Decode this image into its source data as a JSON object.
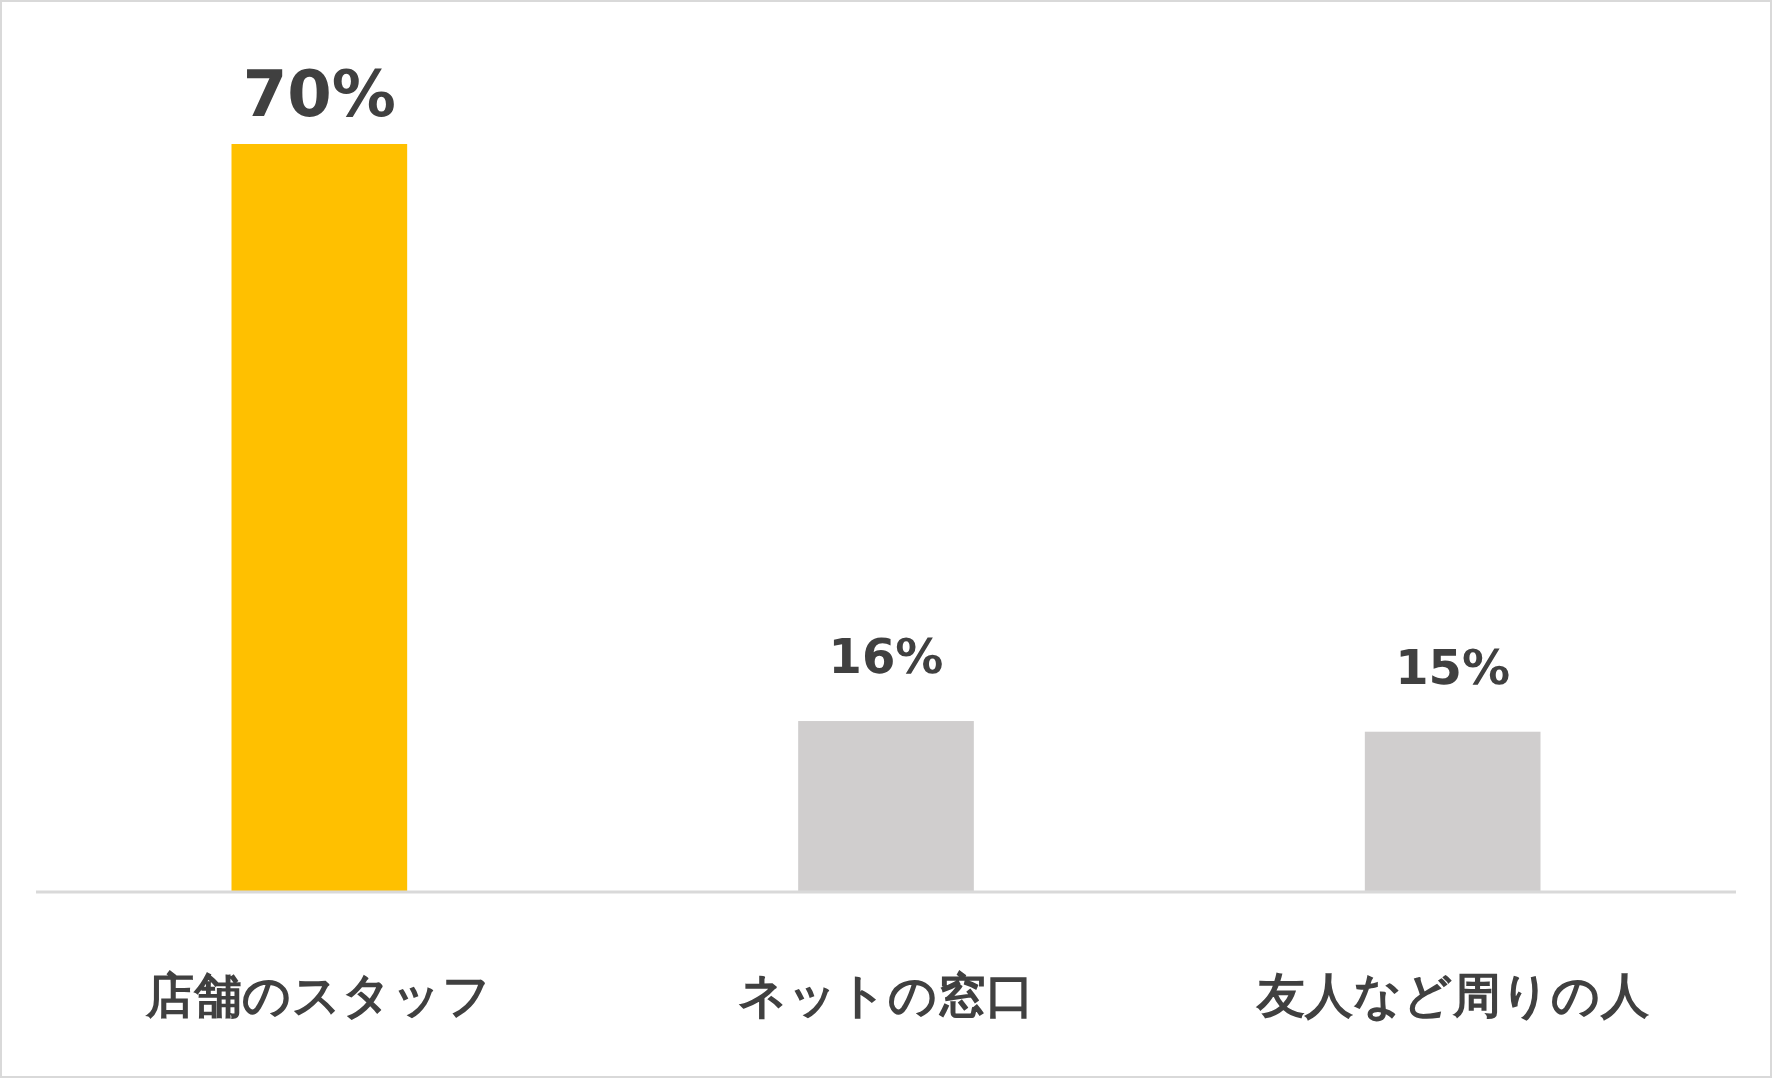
{
  "chart_data": {
    "type": "bar",
    "categories": [
      "店舗のスタッフ",
      "ネットの窓口",
      "友人など周りの人"
    ],
    "values": [
      70,
      16,
      15
    ],
    "colors": [
      "#ffc000",
      "#d0cece",
      "#d0cece"
    ],
    "value_labels": [
      "70%",
      "16%",
      "15%"
    ],
    "ylim": [
      0,
      70
    ],
    "tick_labels": "x"
  }
}
